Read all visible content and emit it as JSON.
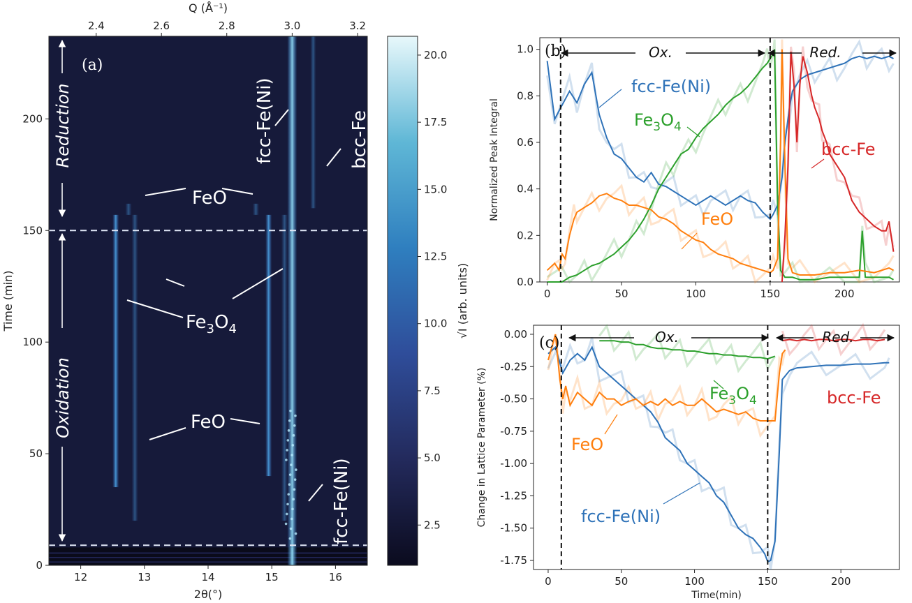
{
  "colors": {
    "fcc": "#2e72b8",
    "fe3o4": "#2ca02c",
    "feo": "#ff7f0e",
    "bcc": "#d62728",
    "heat_bg": "#161a3a"
  },
  "chart_data": [
    {
      "type": "heatmap",
      "panel_label": "(a)",
      "xlabel": "2θ(°)",
      "x_ticks": [
        "12",
        "13",
        "14",
        "15",
        "16"
      ],
      "xlim": [
        11.5,
        16.5
      ],
      "top_xlabel": "Q (Å⁻¹)",
      "top_ticks": [
        "2.4",
        "2.6",
        "2.8",
        "3.0",
        "3.2"
      ],
      "ylabel": "Time (min)",
      "y_ticks": [
        "0",
        "50",
        "100",
        "150",
        "200"
      ],
      "ylim": [
        0,
        237
      ],
      "colorbar": {
        "label": "√I (arb. units)",
        "ticks": [
          "2.5",
          "5.0",
          "7.5",
          "10.0",
          "12.5",
          "15.0",
          "17.5",
          "20.0"
        ],
        "range": [
          1,
          20.7
        ]
      },
      "dashed_lines_time": [
        9,
        150
      ],
      "streaks": [
        {
          "phase": "fcc-Fe(Ni)",
          "two_theta": 15.32,
          "t_start": 0,
          "t_end": 237
        },
        {
          "phase": "Fe3O4",
          "two_theta": 12.55,
          "t_start": 35,
          "t_end": 157
        },
        {
          "phase": "Fe3O4",
          "two_theta": 14.95,
          "t_start": 40,
          "t_end": 157
        },
        {
          "phase": "FeO",
          "two_theta": 12.85,
          "t_start": 20,
          "t_end": 157
        },
        {
          "phase": "FeO",
          "two_theta": 15.2,
          "t_start": 20,
          "t_end": 157
        },
        {
          "phase": "FeO",
          "two_theta": 12.75,
          "t_start": 157,
          "t_end": 162
        },
        {
          "phase": "FeO",
          "two_theta": 14.75,
          "t_start": 157,
          "t_end": 162
        },
        {
          "phase": "bcc-Fe",
          "two_theta": 15.65,
          "t_start": 160,
          "t_end": 237
        }
      ],
      "annotations": {
        "reduction": "Reduction",
        "oxidation": "Oxidation",
        "feo": "FeO",
        "fe3o4_main": "Fe",
        "fe3o4_sub": "3",
        "fe3o4_main2": "O",
        "fe3o4_sub2": "4",
        "fcc": "fcc-Fe(Ni)",
        "bcc": "bcc-Fe"
      }
    },
    {
      "type": "line",
      "panel_label": "(b)",
      "xlabel": "",
      "ylabel": "Normalized Peak Integral",
      "xlim": [
        -5,
        237
      ],
      "ylim": [
        0,
        1.05
      ],
      "x_ticks": [
        "0",
        "50",
        "100",
        "150",
        "200"
      ],
      "y_ticks": [
        "0.0",
        "0.2",
        "0.4",
        "0.6",
        "0.8",
        "1.0"
      ],
      "regions": {
        "ox": "Ox.",
        "red": "Red."
      },
      "dashed_x": [
        9,
        150
      ],
      "series": [
        {
          "name": "fcc-Fe(Ni)",
          "x": [
            0,
            5,
            10,
            15,
            20,
            25,
            30,
            35,
            40,
            45,
            50,
            55,
            60,
            65,
            70,
            75,
            80,
            85,
            90,
            95,
            100,
            105,
            110,
            115,
            120,
            125,
            130,
            135,
            140,
            145,
            150,
            152,
            155,
            158,
            160,
            163,
            165,
            170,
            175,
            180,
            185,
            190,
            195,
            200,
            205,
            210,
            215,
            220,
            225,
            230,
            233
          ],
          "y": [
            0.95,
            0.7,
            0.76,
            0.82,
            0.77,
            0.85,
            0.9,
            0.72,
            0.62,
            0.55,
            0.53,
            0.49,
            0.45,
            0.43,
            0.47,
            0.42,
            0.41,
            0.39,
            0.37,
            0.35,
            0.33,
            0.35,
            0.37,
            0.35,
            0.33,
            0.35,
            0.37,
            0.35,
            0.34,
            0.3,
            0.27,
            0.29,
            0.33,
            0.45,
            0.6,
            0.75,
            0.82,
            0.87,
            0.89,
            0.9,
            0.91,
            0.92,
            0.93,
            0.94,
            0.96,
            0.97,
            0.96,
            0.97,
            0.96,
            0.97,
            0.96
          ]
        },
        {
          "name": "Fe3O4",
          "x": [
            0,
            10,
            15,
            20,
            25,
            30,
            35,
            40,
            45,
            50,
            55,
            60,
            65,
            70,
            75,
            80,
            85,
            90,
            95,
            100,
            105,
            110,
            115,
            120,
            125,
            130,
            135,
            140,
            145,
            148,
            150,
            152,
            153,
            155,
            157,
            160,
            165,
            170,
            180,
            190,
            200,
            210,
            212,
            214,
            220,
            230,
            233
          ],
          "y": [
            0.0,
            0.0,
            0.02,
            0.03,
            0.05,
            0.07,
            0.08,
            0.1,
            0.12,
            0.15,
            0.18,
            0.22,
            0.27,
            0.33,
            0.4,
            0.45,
            0.5,
            0.55,
            0.57,
            0.62,
            0.66,
            0.69,
            0.72,
            0.76,
            0.79,
            0.81,
            0.84,
            0.88,
            0.92,
            0.94,
            0.96,
            0.98,
            1.0,
            0.35,
            0.05,
            0.02,
            0.02,
            0.01,
            0.01,
            0.02,
            0.02,
            0.02,
            0.22,
            0.02,
            0.02,
            0.02,
            0.01
          ]
        },
        {
          "name": "FeO",
          "x": [
            0,
            5,
            8,
            10,
            12,
            15,
            18,
            20,
            25,
            30,
            35,
            40,
            45,
            50,
            55,
            60,
            65,
            70,
            75,
            80,
            85,
            90,
            95,
            100,
            105,
            110,
            115,
            120,
            125,
            130,
            135,
            140,
            145,
            150,
            152,
            155,
            157,
            158,
            160,
            162,
            165,
            170,
            180,
            190,
            200,
            210,
            220,
            230,
            233
          ],
          "y": [
            0.05,
            0.08,
            0.05,
            0.12,
            0.1,
            0.2,
            0.27,
            0.3,
            0.32,
            0.34,
            0.37,
            0.38,
            0.36,
            0.35,
            0.33,
            0.33,
            0.32,
            0.31,
            0.28,
            0.27,
            0.25,
            0.22,
            0.2,
            0.18,
            0.17,
            0.14,
            0.12,
            0.11,
            0.1,
            0.08,
            0.07,
            0.06,
            0.05,
            0.04,
            0.05,
            0.1,
            0.6,
            1.0,
            0.5,
            0.1,
            0.04,
            0.03,
            0.03,
            0.04,
            0.04,
            0.05,
            0.04,
            0.06,
            0.05
          ]
        },
        {
          "name": "bcc-Fe",
          "x": [
            158,
            160,
            162,
            164,
            166,
            168,
            170,
            172,
            175,
            178,
            180,
            183,
            185,
            188,
            190,
            195,
            200,
            205,
            210,
            215,
            220,
            225,
            228,
            230,
            233
          ],
          "y": [
            0.0,
            0.2,
            0.5,
            0.99,
            0.85,
            0.6,
            0.85,
            0.97,
            0.9,
            0.8,
            0.75,
            0.7,
            0.65,
            0.6,
            0.55,
            0.5,
            0.45,
            0.35,
            0.3,
            0.27,
            0.24,
            0.22,
            0.22,
            0.26,
            0.13
          ]
        }
      ],
      "labels": {
        "fcc": "fcc-Fe(Ni)",
        "fe3o4_main": "Fe",
        "fe3o4_sub": "3",
        "fe3o4_main2": "O",
        "fe3o4_sub2": "4",
        "feo": "FeO",
        "bcc": "bcc-Fe"
      }
    },
    {
      "type": "line",
      "panel_label": "(c)",
      "xlabel": "Time(min)",
      "ylabel": "Change in Lattice Parameter (%)",
      "xlim": [
        -10,
        240
      ],
      "ylim": [
        -1.82,
        0.07
      ],
      "x_ticks": [
        "0",
        "50",
        "100",
        "150",
        "200"
      ],
      "y_ticks": [
        "0.00",
        "-0.25",
        "-0.50",
        "-0.75",
        "-1.00",
        "-1.25",
        "-1.50",
        "-1.75"
      ],
      "regions": {
        "ox": "Ox.",
        "red": "Red."
      },
      "dashed_x": [
        9,
        150
      ],
      "series": [
        {
          "name": "fcc-Fe(Ni)",
          "x": [
            0,
            5,
            10,
            15,
            20,
            25,
            30,
            35,
            40,
            45,
            50,
            55,
            60,
            65,
            70,
            75,
            80,
            85,
            90,
            95,
            100,
            105,
            110,
            115,
            120,
            125,
            130,
            135,
            140,
            145,
            148,
            150,
            152,
            155,
            158,
            160,
            165,
            170,
            180,
            190,
            200,
            210,
            220,
            230,
            233
          ],
          "y": [
            -0.15,
            -0.1,
            -0.3,
            -0.2,
            -0.15,
            -0.2,
            -0.1,
            -0.25,
            -0.3,
            -0.35,
            -0.4,
            -0.45,
            -0.5,
            -0.55,
            -0.6,
            -0.68,
            -0.8,
            -0.85,
            -0.9,
            -1.0,
            -1.05,
            -1.1,
            -1.15,
            -1.25,
            -1.3,
            -1.4,
            -1.5,
            -1.55,
            -1.58,
            -1.65,
            -1.7,
            -1.76,
            -1.75,
            -1.6,
            -0.9,
            -0.35,
            -0.28,
            -0.26,
            -0.25,
            -0.24,
            -0.24,
            -0.23,
            -0.23,
            -0.22,
            -0.22
          ]
        },
        {
          "name": "Fe3O4",
          "x": [
            35,
            40,
            45,
            50,
            55,
            60,
            65,
            70,
            75,
            80,
            85,
            90,
            95,
            100,
            105,
            110,
            115,
            120,
            125,
            130,
            135,
            140,
            145,
            150,
            155
          ],
          "y": [
            -0.05,
            -0.05,
            -0.05,
            -0.06,
            -0.06,
            -0.08,
            -0.08,
            -0.1,
            -0.11,
            -0.11,
            -0.12,
            -0.12,
            -0.13,
            -0.13,
            -0.14,
            -0.15,
            -0.15,
            -0.16,
            -0.16,
            -0.17,
            -0.17,
            -0.18,
            -0.18,
            -0.19,
            -0.17
          ]
        },
        {
          "name": "FeO",
          "x": [
            0,
            5,
            8,
            10,
            12,
            15,
            20,
            25,
            30,
            35,
            40,
            45,
            50,
            55,
            60,
            65,
            70,
            75,
            80,
            85,
            90,
            95,
            100,
            105,
            110,
            115,
            120,
            125,
            130,
            135,
            140,
            145,
            150,
            155,
            158,
            160,
            162
          ],
          "y": [
            -0.2,
            0.0,
            -0.35,
            -0.5,
            -0.4,
            -0.55,
            -0.45,
            -0.5,
            -0.55,
            -0.45,
            -0.5,
            -0.5,
            -0.55,
            -0.52,
            -0.5,
            -0.55,
            -0.52,
            -0.55,
            -0.5,
            -0.55,
            -0.52,
            -0.55,
            -0.55,
            -0.5,
            -0.55,
            -0.6,
            -0.58,
            -0.6,
            -0.62,
            -0.6,
            -0.65,
            -0.67,
            -0.67,
            -0.67,
            -0.3,
            -0.15,
            -0.12
          ]
        },
        {
          "name": "bcc-Fe",
          "x": [
            160,
            165,
            170,
            175,
            180,
            185,
            190,
            195,
            200,
            205,
            210,
            215,
            220,
            225,
            230
          ],
          "y": [
            -0.05,
            -0.04,
            -0.05,
            -0.04,
            -0.05,
            -0.04,
            -0.04,
            -0.05,
            -0.04,
            -0.04,
            -0.05,
            -0.04,
            -0.04,
            -0.05,
            -0.04
          ]
        }
      ],
      "labels": {
        "fcc": "fcc-Fe(Ni)",
        "fe3o4_main": "Fe",
        "fe3o4_sub": "3",
        "fe3o4_main2": "O",
        "fe3o4_sub2": "4",
        "feo": "FeO",
        "bcc": "bcc-Fe"
      }
    }
  ]
}
